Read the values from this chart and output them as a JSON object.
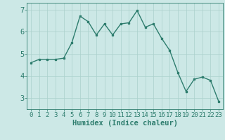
{
  "x": [
    0,
    1,
    2,
    3,
    4,
    5,
    6,
    7,
    8,
    9,
    10,
    11,
    12,
    13,
    14,
    15,
    16,
    17,
    18,
    19,
    20,
    21,
    22,
    23
  ],
  "y": [
    4.6,
    4.75,
    4.75,
    4.75,
    4.8,
    5.5,
    6.7,
    6.45,
    5.85,
    6.35,
    5.85,
    6.35,
    6.4,
    6.95,
    6.2,
    6.35,
    5.7,
    5.15,
    4.15,
    3.3,
    3.85,
    3.95,
    3.8,
    2.85
  ],
  "line_color": "#2e7d6e",
  "bg_color": "#cce8e6",
  "grid_color": "#aad0cc",
  "axis_color": "#2e7d6e",
  "ylabel_ticks": [
    3,
    4,
    5,
    6,
    7
  ],
  "xlabel": "Humidex (Indice chaleur)",
  "xlim": [
    -0.5,
    23.5
  ],
  "ylim": [
    2.5,
    7.3
  ],
  "tick_fontsize": 6.5,
  "label_fontsize": 7.5
}
